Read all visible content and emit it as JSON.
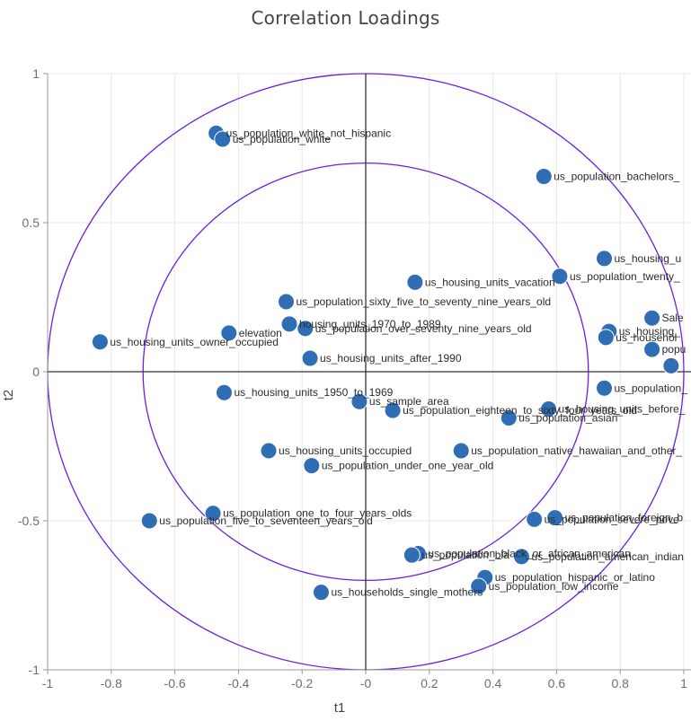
{
  "chart_data": {
    "type": "scatter",
    "title": "Correlation Loadings",
    "xlabel": "t1",
    "ylabel": "t2",
    "xlim": [
      -1,
      1
    ],
    "ylim": [
      -1,
      1
    ],
    "x_ticks": [
      "-1",
      "-0.8",
      "-0.6",
      "-0.4",
      "-0.2",
      "-0",
      "0.2",
      "0.4",
      "0.6",
      "0.8",
      "1"
    ],
    "x_tick_values": [
      -1,
      -0.8,
      -0.6,
      -0.4,
      -0.2,
      0,
      0.2,
      0.4,
      0.6,
      0.8,
      1
    ],
    "y_ticks": [
      "1",
      "0.5",
      "0",
      "-0.5",
      "-1"
    ],
    "y_tick_values": [
      1,
      0.5,
      0,
      -0.5,
      -1
    ],
    "circles": [
      1,
      0.7
    ],
    "grid": true,
    "colors": {
      "point": "#2f6db5",
      "circle": "#6a1ee6",
      "axis": "#333333",
      "grid": "#e8e8e8"
    },
    "points": [
      {
        "label": "us_population_white_not_hispanic",
        "x": -0.47,
        "y": 0.8
      },
      {
        "label": "us_population_white",
        "x": -0.45,
        "y": 0.78
      },
      {
        "label": "us_population_bachelors_",
        "x": 0.56,
        "y": 0.655
      },
      {
        "label": "us_housing_u",
        "x": 0.75,
        "y": 0.38
      },
      {
        "label": "us_housing_units_vacation",
        "x": 0.155,
        "y": 0.3
      },
      {
        "label": "us_population_twenty_",
        "x": 0.61,
        "y": 0.32
      },
      {
        "label": "us_population_sixty_five_to_seventy_nine_years_old",
        "x": -0.25,
        "y": 0.235
      },
      {
        "label": "Sale",
        "x": 0.9,
        "y": 0.18
      },
      {
        "label": "housing_units_1970_to_1989",
        "x": -0.24,
        "y": 0.16
      },
      {
        "label": "us_population_over_seventy_nine_years_old",
        "x": -0.19,
        "y": 0.145
      },
      {
        "label": "elevation",
        "x": -0.43,
        "y": 0.13
      },
      {
        "label": "us_housing_",
        "x": 0.765,
        "y": 0.135
      },
      {
        "label": "us_househol",
        "x": 0.755,
        "y": 0.115
      },
      {
        "label": "us_housing_units_owner_occupied",
        "x": -0.835,
        "y": 0.1
      },
      {
        "label": "popu",
        "x": 0.9,
        "y": 0.075
      },
      {
        "label": "us_housing_units_after_1990",
        "x": -0.175,
        "y": 0.045
      },
      {
        "label": "",
        "x": 0.96,
        "y": 0.02
      },
      {
        "label": "us_population_",
        "x": 0.75,
        "y": -0.055
      },
      {
        "label": "us_housing_units_1950_to_1969",
        "x": -0.445,
        "y": -0.07
      },
      {
        "label": "us_sample_area",
        "x": -0.02,
        "y": -0.1
      },
      {
        "label": "us_population_eighteen_to_sixty_four_years_old",
        "x": 0.085,
        "y": -0.13
      },
      {
        "label": "us_housing_units_before_",
        "x": 0.575,
        "y": -0.125
      },
      {
        "label": "us_population_asian",
        "x": 0.45,
        "y": -0.155
      },
      {
        "label": "us_housing_units_occupied",
        "x": -0.305,
        "y": -0.265
      },
      {
        "label": "us_population_native_hawaiian_and_other_",
        "x": 0.3,
        "y": -0.265
      },
      {
        "label": "us_population_under_one_year_old",
        "x": -0.17,
        "y": -0.315
      },
      {
        "label": "us_population_one_to_four_years_olds",
        "x": -0.48,
        "y": -0.475
      },
      {
        "label": "us_population_five_to_seventeen_years_old",
        "x": -0.68,
        "y": -0.5
      },
      {
        "label": "us_population_foreign_b",
        "x": 0.595,
        "y": -0.49
      },
      {
        "label": "us_population_severe_pove",
        "x": 0.53,
        "y": -0.495
      },
      {
        "label": "us_population_black_or_african_american",
        "x": 0.165,
        "y": -0.61
      },
      {
        "label": "us_population_bla",
        "x": 0.145,
        "y": -0.615
      },
      {
        "label": "us_population_american_indian",
        "x": 0.49,
        "y": -0.62
      },
      {
        "label": "us_population_hispanic_or_latino",
        "x": 0.375,
        "y": -0.69
      },
      {
        "label": "us_population_low_income",
        "x": 0.355,
        "y": -0.72
      },
      {
        "label": "us_households_single_mothers",
        "x": -0.14,
        "y": -0.74
      }
    ]
  }
}
